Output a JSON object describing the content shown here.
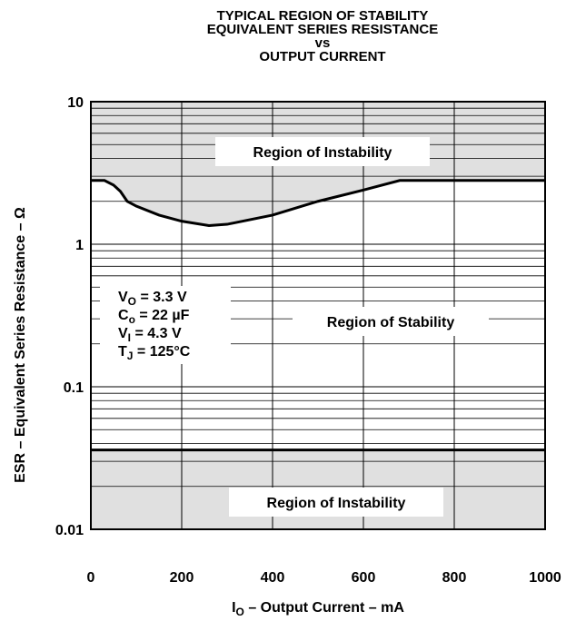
{
  "chart_data": {
    "type": "line",
    "title": [
      "TYPICAL REGION OF STABILITY",
      "EQUIVALENT SERIES RESISTANCE",
      "vs",
      "OUTPUT CURRENT"
    ],
    "xlabel": {
      "main": "I",
      "sub": "O",
      "rest": " – Output Current – mA"
    },
    "ylabel": "ESR – Equivalent Series Resistance –  Ω",
    "xlim": [
      0,
      1000
    ],
    "xticks": [
      0,
      200,
      400,
      600,
      800,
      1000
    ],
    "ylim": [
      0.01,
      10
    ],
    "yticks": [
      0.01,
      0.1,
      1,
      10
    ],
    "ylog": true,
    "grid": true,
    "lines": [
      {
        "color": "#000000",
        "x": [
          0,
          30,
          50,
          65,
          80,
          100,
          150,
          200,
          260,
          300,
          400,
          500,
          600,
          680,
          1000
        ],
        "values": [
          2.8,
          2.8,
          2.6,
          2.35,
          2.0,
          1.85,
          1.6,
          1.45,
          1.35,
          1.38,
          1.6,
          2.0,
          2.4,
          2.8,
          2.8
        ]
      },
      {
        "color": "#000000",
        "x": [
          0,
          1000
        ],
        "values": [
          0.036,
          0.036
        ]
      }
    ],
    "regions": [
      "Region of Instability",
      "Region of Stability",
      "Region of Instability"
    ],
    "conditions": [
      {
        "main": "V",
        "sub": "O",
        "rest": " = 3.3 V"
      },
      {
        "main": "C",
        "sub": "o",
        "rest": " = 22 µF"
      },
      {
        "main": "V",
        "sub": "I",
        "rest": " = 4.3 V"
      },
      {
        "main": "T",
        "sub": "J",
        "rest": " = 125°C"
      }
    ]
  }
}
